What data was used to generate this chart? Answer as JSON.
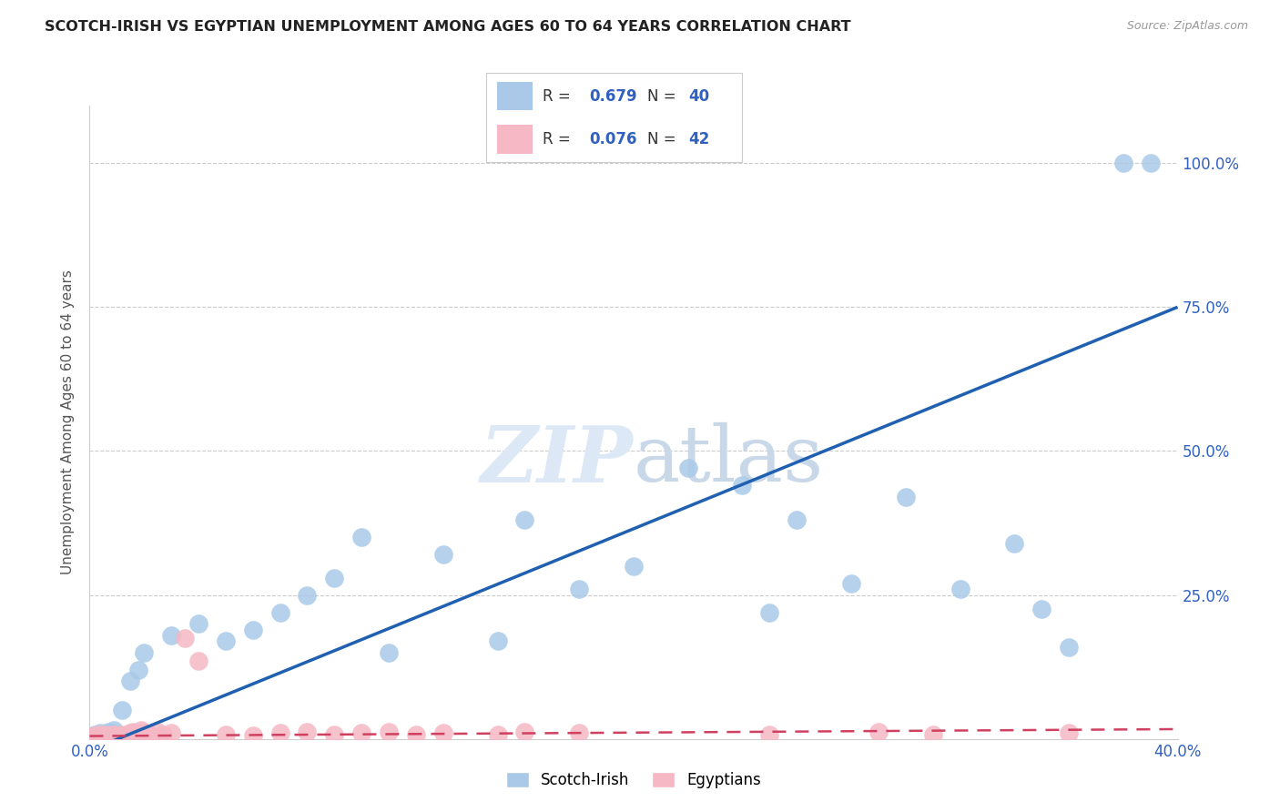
{
  "title": "SCOTCH-IRISH VS EGYPTIAN UNEMPLOYMENT AMONG AGES 60 TO 64 YEARS CORRELATION CHART",
  "source": "Source: ZipAtlas.com",
  "ylabel": "Unemployment Among Ages 60 to 64 years",
  "xlim": [
    0.0,
    0.4
  ],
  "ylim": [
    0.0,
    1.1
  ],
  "yticks": [
    0.0,
    0.25,
    0.5,
    0.75,
    1.0
  ],
  "ytick_labels": [
    "",
    "25.0%",
    "50.0%",
    "75.0%",
    "100.0%"
  ],
  "xticks": [
    0.0,
    0.1,
    0.2,
    0.3,
    0.4
  ],
  "xtick_labels": [
    "0.0%",
    "",
    "",
    "",
    "40.0%"
  ],
  "scotch_irish_R": 0.679,
  "scotch_irish_N": 40,
  "egyptian_R": 0.076,
  "egyptian_N": 42,
  "scotch_irish_color": "#aac9e8",
  "scotch_irish_line_color": "#2060b0",
  "egyptian_color": "#f5b8c4",
  "egyptian_line_color": "#d04060",
  "scotch_irish_x": [
    0.001,
    0.002,
    0.003,
    0.004,
    0.005,
    0.006,
    0.007,
    0.008,
    0.009,
    0.01,
    0.012,
    0.015,
    0.018,
    0.02,
    0.03,
    0.04,
    0.05,
    0.06,
    0.07,
    0.08,
    0.09,
    0.1,
    0.11,
    0.13,
    0.15,
    0.16,
    0.18,
    0.2,
    0.22,
    0.24,
    0.25,
    0.26,
    0.28,
    0.3,
    0.32,
    0.34,
    0.35,
    0.36,
    0.38,
    0.39
  ],
  "scotch_irish_y": [
    0.005,
    0.008,
    0.006,
    0.01,
    0.004,
    0.007,
    0.012,
    0.01,
    0.015,
    0.008,
    0.05,
    0.1,
    0.12,
    0.15,
    0.18,
    0.2,
    0.17,
    0.19,
    0.22,
    0.25,
    0.28,
    0.35,
    0.15,
    0.32,
    0.17,
    0.38,
    0.26,
    0.3,
    0.47,
    0.44,
    0.22,
    0.38,
    0.27,
    0.42,
    0.26,
    0.34,
    0.225,
    0.16,
    1.0,
    1.0
  ],
  "egyptian_x": [
    0.001,
    0.002,
    0.003,
    0.004,
    0.005,
    0.006,
    0.007,
    0.008,
    0.009,
    0.01,
    0.011,
    0.012,
    0.013,
    0.014,
    0.015,
    0.016,
    0.017,
    0.018,
    0.019,
    0.02,
    0.022,
    0.025,
    0.027,
    0.03,
    0.035,
    0.04,
    0.05,
    0.06,
    0.07,
    0.08,
    0.09,
    0.1,
    0.11,
    0.12,
    0.13,
    0.15,
    0.16,
    0.18,
    0.25,
    0.29,
    0.31,
    0.36
  ],
  "egyptian_y": [
    0.005,
    0.005,
    0.007,
    0.004,
    0.008,
    0.006,
    0.004,
    0.007,
    0.008,
    0.005,
    0.006,
    0.007,
    0.005,
    0.008,
    0.01,
    0.012,
    0.008,
    0.007,
    0.015,
    0.01,
    0.008,
    0.012,
    0.008,
    0.01,
    0.175,
    0.135,
    0.008,
    0.006,
    0.01,
    0.012,
    0.008,
    0.01,
    0.012,
    0.008,
    0.01,
    0.008,
    0.012,
    0.01,
    0.008,
    0.012,
    0.008,
    0.01
  ]
}
